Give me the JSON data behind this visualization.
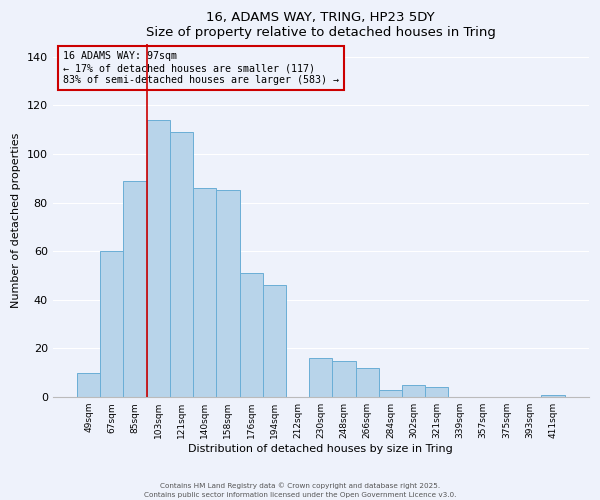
{
  "title": "16, ADAMS WAY, TRING, HP23 5DY",
  "subtitle": "Size of property relative to detached houses in Tring",
  "xlabel": "Distribution of detached houses by size in Tring",
  "ylabel": "Number of detached properties",
  "footer_line1": "Contains HM Land Registry data © Crown copyright and database right 2025.",
  "footer_line2": "Contains public sector information licensed under the Open Government Licence v3.0.",
  "bar_labels": [
    "49sqm",
    "67sqm",
    "85sqm",
    "103sqm",
    "121sqm",
    "140sqm",
    "158sqm",
    "176sqm",
    "194sqm",
    "212sqm",
    "230sqm",
    "248sqm",
    "266sqm",
    "284sqm",
    "302sqm",
    "321sqm",
    "339sqm",
    "357sqm",
    "375sqm",
    "393sqm",
    "411sqm"
  ],
  "bar_values": [
    10,
    60,
    89,
    114,
    109,
    86,
    85,
    51,
    46,
    0,
    16,
    15,
    12,
    3,
    5,
    4,
    0,
    0,
    0,
    0,
    1
  ],
  "bar_color": "#b8d4ea",
  "bar_edge_color": "#6aaed6",
  "vline_color": "#cc0000",
  "annotation_title": "16 ADAMS WAY: 97sqm",
  "annotation_line1": "← 17% of detached houses are smaller (117)",
  "annotation_line2": "83% of semi-detached houses are larger (583) →",
  "annotation_box_color": "#cc0000",
  "ylim": [
    0,
    145
  ],
  "yticks": [
    0,
    20,
    40,
    60,
    80,
    100,
    120,
    140
  ],
  "background_color": "#eef2fb",
  "grid_color": "#ffffff"
}
